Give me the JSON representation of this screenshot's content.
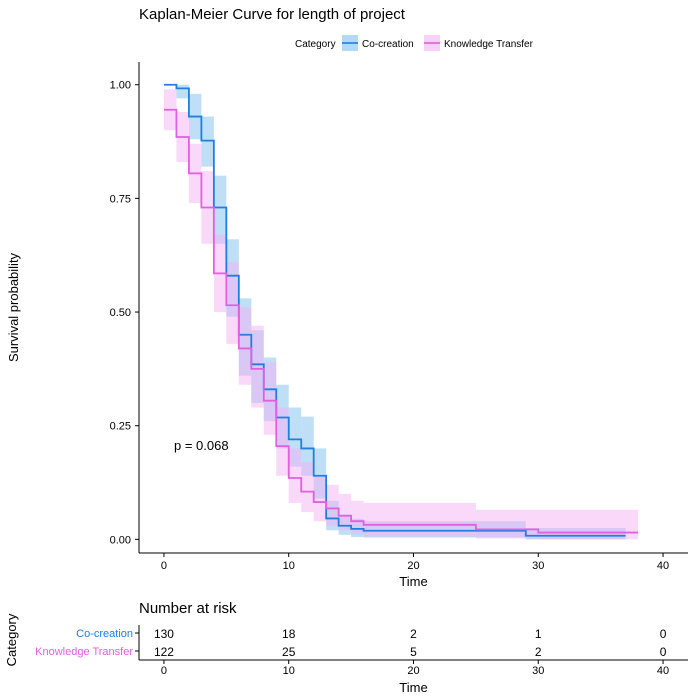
{
  "chart_data": {
    "type": "line",
    "title": "Kaplan-Meier Curve for length of project",
    "xlabel": "Time",
    "ylabel": "Survival probability",
    "xlim": [
      -2,
      42
    ],
    "ylim": [
      -0.03,
      1.05
    ],
    "x_ticks": [
      "0",
      "10",
      "20",
      "30",
      "40"
    ],
    "y_ticks": [
      "0.00",
      "0.25",
      "0.50",
      "0.75",
      "1.00"
    ],
    "x_tick_values": [
      0,
      10,
      20,
      30,
      40
    ],
    "y_tick_values": [
      0,
      0.25,
      0.5,
      0.75,
      1.0
    ],
    "legend": {
      "title": "Category",
      "position": "top"
    },
    "series": [
      {
        "name": "Co-creation",
        "color": "#1f7fe0",
        "band_color": "#7fbff0",
        "steps": [
          [
            0,
            1.0
          ],
          [
            1,
            0.992
          ],
          [
            2,
            0.93
          ],
          [
            3,
            0.877
          ],
          [
            4,
            0.73
          ],
          [
            5,
            0.58
          ],
          [
            6,
            0.45
          ],
          [
            7,
            0.385
          ],
          [
            8,
            0.33
          ],
          [
            9,
            0.268
          ],
          [
            10,
            0.22
          ],
          [
            11,
            0.2
          ],
          [
            12,
            0.14
          ],
          [
            13,
            0.046
          ],
          [
            14,
            0.03
          ],
          [
            15,
            0.023
          ],
          [
            16,
            0.019
          ],
          [
            29,
            0.008
          ],
          [
            37,
            0.008
          ]
        ],
        "lower": [
          [
            0,
            1.0
          ],
          [
            1,
            0.97
          ],
          [
            2,
            0.88
          ],
          [
            3,
            0.82
          ],
          [
            4,
            0.65
          ],
          [
            5,
            0.49
          ],
          [
            6,
            0.36
          ],
          [
            7,
            0.3
          ],
          [
            8,
            0.26
          ],
          [
            9,
            0.2
          ],
          [
            10,
            0.16
          ],
          [
            11,
            0.14
          ],
          [
            12,
            0.09
          ],
          [
            13,
            0.02
          ],
          [
            14,
            0.01
          ],
          [
            15,
            0.005
          ],
          [
            16,
            0.004
          ],
          [
            29,
            0.0
          ],
          [
            37,
            0.0
          ]
        ],
        "upper": [
          [
            0,
            1.0
          ],
          [
            1,
            1.0
          ],
          [
            2,
            0.98
          ],
          [
            3,
            0.93
          ],
          [
            4,
            0.8
          ],
          [
            5,
            0.66
          ],
          [
            6,
            0.53
          ],
          [
            7,
            0.46
          ],
          [
            8,
            0.4
          ],
          [
            9,
            0.34
          ],
          [
            10,
            0.29
          ],
          [
            11,
            0.27
          ],
          [
            12,
            0.2
          ],
          [
            13,
            0.085
          ],
          [
            14,
            0.055
          ],
          [
            15,
            0.045
          ],
          [
            16,
            0.04
          ],
          [
            29,
            0.025
          ],
          [
            37,
            0.025
          ]
        ]
      },
      {
        "name": "Knowledge Transfer",
        "color": "#e060e0",
        "band_color": "#f4b2f4",
        "steps": [
          [
            0,
            0.945
          ],
          [
            1,
            0.885
          ],
          [
            2,
            0.805
          ],
          [
            3,
            0.73
          ],
          [
            4,
            0.585
          ],
          [
            5,
            0.515
          ],
          [
            6,
            0.42
          ],
          [
            7,
            0.375
          ],
          [
            8,
            0.305
          ],
          [
            9,
            0.205
          ],
          [
            10,
            0.135
          ],
          [
            11,
            0.105
          ],
          [
            12,
            0.082
          ],
          [
            13,
            0.068
          ],
          [
            14,
            0.052
          ],
          [
            15,
            0.04
          ],
          [
            16,
            0.032
          ],
          [
            25,
            0.022
          ],
          [
            30,
            0.015
          ],
          [
            38,
            0.015
          ]
        ],
        "lower": [
          [
            0,
            0.9
          ],
          [
            1,
            0.83
          ],
          [
            2,
            0.74
          ],
          [
            3,
            0.65
          ],
          [
            4,
            0.5
          ],
          [
            5,
            0.43
          ],
          [
            6,
            0.34
          ],
          [
            7,
            0.29
          ],
          [
            8,
            0.23
          ],
          [
            9,
            0.14
          ],
          [
            10,
            0.08
          ],
          [
            11,
            0.06
          ],
          [
            12,
            0.04
          ],
          [
            13,
            0.03
          ],
          [
            14,
            0.02
          ],
          [
            15,
            0.012
          ],
          [
            16,
            0.006
          ],
          [
            25,
            0.002
          ],
          [
            30,
            0.0
          ],
          [
            38,
            0.0
          ]
        ],
        "upper": [
          [
            0,
            0.99
          ],
          [
            1,
            0.94
          ],
          [
            2,
            0.87
          ],
          [
            3,
            0.81
          ],
          [
            4,
            0.67
          ],
          [
            5,
            0.61
          ],
          [
            6,
            0.51
          ],
          [
            7,
            0.47
          ],
          [
            8,
            0.39
          ],
          [
            9,
            0.29
          ],
          [
            10,
            0.2
          ],
          [
            11,
            0.17
          ],
          [
            12,
            0.14
          ],
          [
            13,
            0.12
          ],
          [
            14,
            0.1
          ],
          [
            15,
            0.085
          ],
          [
            16,
            0.08
          ],
          [
            25,
            0.065
          ],
          [
            30,
            0.065
          ],
          [
            38,
            0.065
          ]
        ]
      }
    ],
    "annotation": "p = 0.068"
  },
  "risk_table": {
    "title": "Number at risk",
    "ylabel": "Category",
    "xlabel": "Time",
    "x_ticks": [
      "0",
      "10",
      "20",
      "30",
      "40"
    ],
    "x_tick_values": [
      0,
      10,
      20,
      30,
      40
    ],
    "rows": [
      {
        "label": "Co-creation",
        "color": "#1f7fe0",
        "values": [
          "130",
          "18",
          "2",
          "1",
          "0"
        ]
      },
      {
        "label": "Knowledge Transfer",
        "color": "#e060e0",
        "values": [
          "122",
          "25",
          "5",
          "2",
          "0"
        ]
      }
    ]
  }
}
